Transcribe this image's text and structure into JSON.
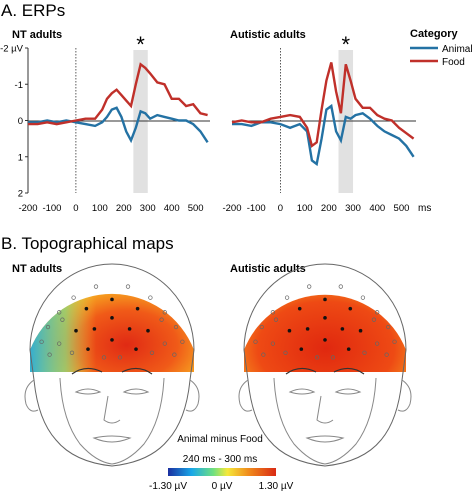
{
  "section_a": {
    "title": "A. ERPs"
  },
  "section_b": {
    "title": "B. Topographical maps"
  },
  "legend": {
    "title": "Category"
  },
  "chart_data": [
    {
      "type": "line",
      "panel_title": "NT adults",
      "ylabel": "-2 µV",
      "x_unit": "ms",
      "xlim": [
        -200,
        560
      ],
      "ylim": [
        2,
        -2
      ],
      "y_inverted": true,
      "x_ticks": [
        "-200",
        "-100",
        "0",
        "100",
        "200",
        "300",
        "400",
        "500"
      ],
      "y_ticks": [
        "-2 µV",
        "-1",
        "0",
        "1",
        "2"
      ],
      "highlight": {
        "range": [
          240,
          300
        ],
        "marker": "*"
      },
      "series": [
        {
          "name": "Animal",
          "color": "#2472a4",
          "x": [
            -200,
            -160,
            -120,
            -80,
            -40,
            0,
            40,
            80,
            110,
            130,
            150,
            170,
            190,
            210,
            230,
            250,
            270,
            290,
            310,
            340,
            370,
            400,
            430,
            460,
            490,
            520,
            550
          ],
          "y": [
            0.05,
            0.05,
            0.0,
            0.05,
            0.0,
            0.05,
            0.1,
            0.15,
            0.05,
            -0.1,
            -0.3,
            -0.35,
            -0.1,
            0.3,
            0.55,
            0.2,
            -0.25,
            -0.2,
            -0.05,
            -0.15,
            -0.1,
            -0.05,
            0.0,
            0.0,
            0.1,
            0.3,
            0.6
          ]
        },
        {
          "name": "Food",
          "color": "#c0302a",
          "x": [
            -200,
            -160,
            -120,
            -80,
            -40,
            0,
            40,
            80,
            110,
            130,
            150,
            170,
            190,
            210,
            230,
            250,
            270,
            290,
            310,
            340,
            370,
            400,
            430,
            460,
            490,
            520,
            550
          ],
          "y": [
            0.1,
            0.1,
            0.05,
            0.1,
            0.05,
            0.0,
            -0.05,
            -0.05,
            -0.3,
            -0.6,
            -0.75,
            -0.85,
            -0.7,
            -0.55,
            -0.4,
            -1.0,
            -1.55,
            -1.45,
            -1.3,
            -1.05,
            -1.0,
            -0.6,
            -0.6,
            -0.4,
            -0.45,
            -0.2,
            -0.15
          ]
        }
      ]
    },
    {
      "type": "line",
      "panel_title": "Autistic adults",
      "x_unit": "ms",
      "xlim": [
        -200,
        560
      ],
      "ylim": [
        2,
        -2
      ],
      "y_inverted": true,
      "x_ticks": [
        "-200",
        "-100",
        "0",
        "100",
        "200",
        "300",
        "400",
        "500"
      ],
      "highlight": {
        "range": [
          240,
          300
        ],
        "marker": "*"
      },
      "series": [
        {
          "name": "Animal",
          "color": "#2472a4",
          "x": [
            -200,
            -160,
            -120,
            -80,
            -40,
            0,
            40,
            80,
            110,
            130,
            150,
            170,
            190,
            210,
            230,
            250,
            270,
            290,
            310,
            340,
            370,
            400,
            430,
            460,
            490,
            520,
            550
          ],
          "y": [
            0.1,
            0.1,
            0.15,
            0.05,
            0.05,
            0.1,
            0.2,
            0.1,
            0.3,
            1.1,
            1.2,
            0.5,
            -0.3,
            -0.4,
            0.3,
            0.55,
            -0.1,
            -0.05,
            -0.15,
            -0.2,
            -0.05,
            0.15,
            0.3,
            0.4,
            0.5,
            0.7,
            1.0
          ]
        },
        {
          "name": "Food",
          "color": "#c0302a",
          "x": [
            -200,
            -160,
            -120,
            -80,
            -40,
            0,
            40,
            80,
            110,
            130,
            150,
            170,
            190,
            210,
            230,
            250,
            270,
            290,
            310,
            340,
            370,
            400,
            430,
            460,
            490,
            520,
            550
          ],
          "y": [
            0.05,
            0.0,
            0.05,
            0.05,
            -0.05,
            -0.1,
            -0.15,
            -0.1,
            0.2,
            0.7,
            0.6,
            -0.3,
            -1.1,
            -1.6,
            -0.8,
            -0.2,
            -1.55,
            -1.1,
            -0.6,
            -0.35,
            -0.35,
            -0.15,
            -0.05,
            0.0,
            0.2,
            0.35,
            0.5
          ]
        }
      ]
    }
  ],
  "topo": {
    "panels": [
      {
        "title": "NT adults"
      },
      {
        "title": "Autistic adults"
      }
    ],
    "caption": "Animal minus Food",
    "time_window": "240 ms - 300 ms",
    "colorbar": {
      "min_label": "-1.30 µV",
      "mid_label": "0 µV",
      "max_label": "1.30 µV",
      "colors": [
        "#1b2fa0",
        "#19a8e8",
        "#6fe080",
        "#f5e83a",
        "#f08a1c",
        "#d92a14"
      ]
    }
  }
}
